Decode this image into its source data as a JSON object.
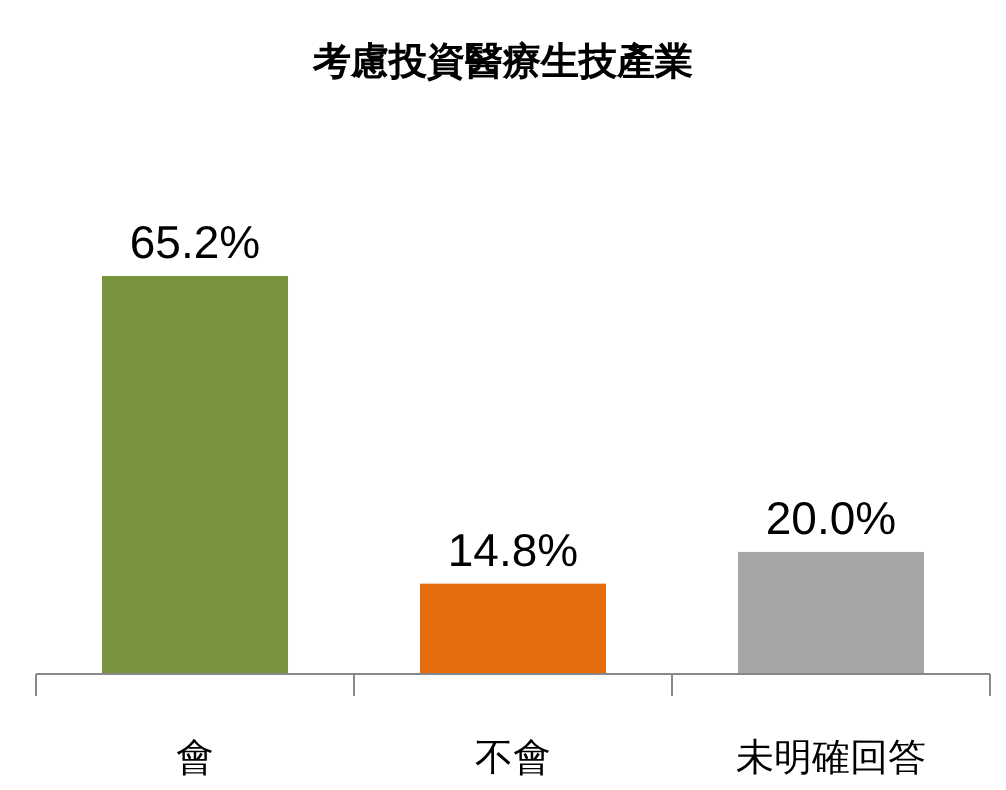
{
  "chart_data": {
    "type": "bar",
    "title": "考慮投資醫療生技產業",
    "categories": [
      "會",
      "不會",
      "未明確回答"
    ],
    "values": [
      65.2,
      14.8,
      20.0
    ],
    "colors": [
      "#77933c",
      "#e46c0a",
      "#a6a6a6"
    ],
    "value_labels": [
      "65.2%",
      "14.8%",
      "20.0%"
    ]
  }
}
